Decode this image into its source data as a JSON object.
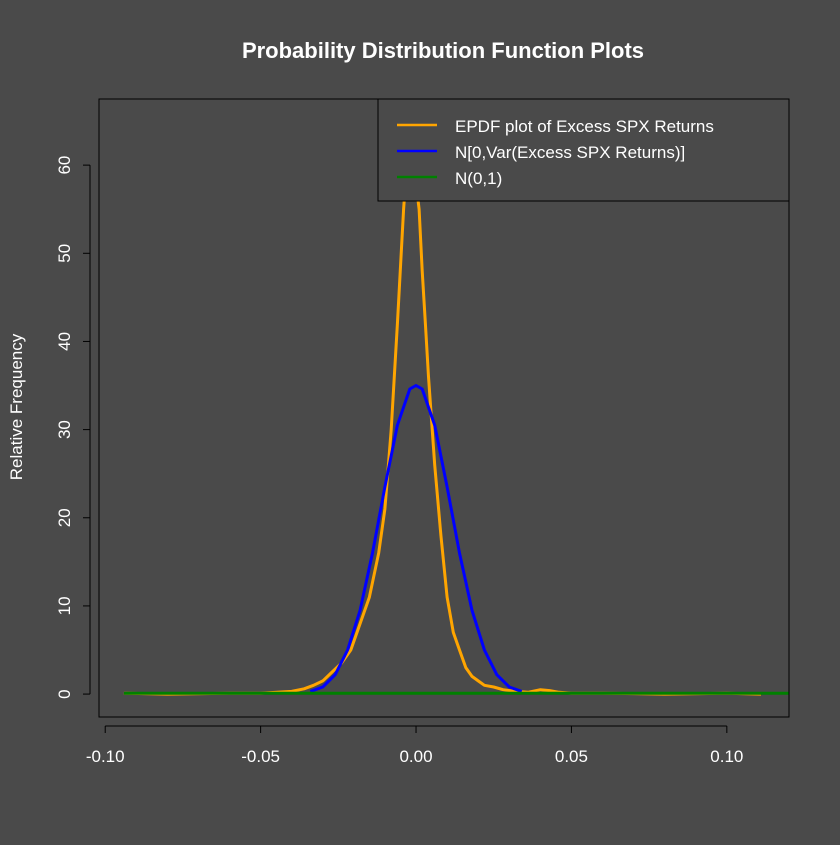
{
  "chart_data": {
    "type": "line",
    "title": "Probability Distribution Function Plots",
    "xlabel": "",
    "ylabel": "Relative Frequency",
    "xlim": [
      -0.102,
      0.12
    ],
    "ylim": [
      -2.6,
      67.5
    ],
    "x_ticks": [
      -0.1,
      -0.05,
      0.0,
      0.05,
      0.1
    ],
    "x_tick_labels": [
      "-0.10",
      "-0.05",
      "0.00",
      "0.05",
      "0.10"
    ],
    "y_ticks": [
      0,
      10,
      20,
      30,
      40,
      50,
      60
    ],
    "y_tick_labels": [
      "0",
      "10",
      "20",
      "30",
      "40",
      "50",
      "60"
    ],
    "legend_position": "top-right",
    "grid": false,
    "colors": {
      "background": "#4a4a4a",
      "axis": "#000000",
      "text": "#ffffff"
    },
    "series": [
      {
        "name": "EPDF plot of Excess SPX Returns",
        "color": "#ffa500",
        "x": [
          -0.094,
          -0.08,
          -0.06,
          -0.05,
          -0.04,
          -0.036,
          -0.033,
          -0.03,
          -0.027,
          -0.024,
          -0.021,
          -0.018,
          -0.015,
          -0.012,
          -0.01,
          -0.008,
          -0.006,
          -0.004,
          -0.003,
          -0.002,
          -0.001,
          0.0,
          0.001,
          0.002,
          0.003,
          0.004,
          0.006,
          0.008,
          0.01,
          0.012,
          0.014,
          0.016,
          0.018,
          0.02,
          0.022,
          0.025,
          0.028,
          0.032,
          0.036,
          0.04,
          0.043,
          0.046,
          0.05,
          0.06,
          0.08,
          0.1,
          0.111
        ],
        "y": [
          0.1,
          0.0,
          0.1,
          0.1,
          0.3,
          0.6,
          1.0,
          1.5,
          2.5,
          3.5,
          5.0,
          8.0,
          11.0,
          16.0,
          21.0,
          30.0,
          42.0,
          55.0,
          60.0,
          62.0,
          61.0,
          58.0,
          55.0,
          48.0,
          42.0,
          36.0,
          26.0,
          18.0,
          11.0,
          7.0,
          5.0,
          3.0,
          2.0,
          1.5,
          1.0,
          0.8,
          0.5,
          0.3,
          0.2,
          0.5,
          0.4,
          0.2,
          0.1,
          0.1,
          0.0,
          0.1,
          0.0
        ]
      },
      {
        "name": "N[0,Var(Excess SPX Returns)]",
        "color": "#0000ff",
        "x": [
          -0.034,
          -0.03,
          -0.026,
          -0.022,
          -0.018,
          -0.014,
          -0.01,
          -0.006,
          -0.002,
          0.0,
          0.002,
          0.006,
          0.01,
          0.014,
          0.018,
          0.022,
          0.026,
          0.03,
          0.034
        ],
        "y": [
          0.3,
          0.8,
          2.2,
          5.0,
          9.5,
          16.0,
          23.5,
          30.5,
          34.6,
          35.0,
          34.6,
          30.5,
          23.5,
          16.0,
          9.5,
          5.0,
          2.2,
          0.8,
          0.3
        ]
      },
      {
        "name": "N(0,1)",
        "color": "#008000",
        "x": [
          -0.094,
          0.12
        ],
        "y": [
          0.1,
          0.1
        ]
      }
    ]
  }
}
